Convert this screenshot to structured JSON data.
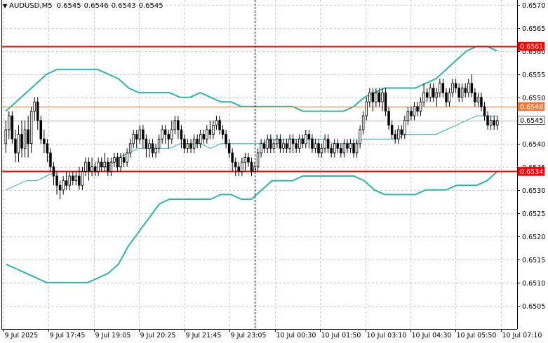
{
  "header": {
    "symbol": "AUDUSD,M5",
    "open": "0.6545",
    "high": "0.6546",
    "low": "0.6543",
    "close": "0.6545"
  },
  "chart_data": {
    "type": "candlestick",
    "symbol": "AUDUSD",
    "timeframe": "M5",
    "ylim": [
      0.65,
      0.6571
    ],
    "y_ticks": [
      "0.6570",
      "0.6565",
      "0.6560",
      "0.6555",
      "0.6550",
      "0.6545",
      "0.6540",
      "0.6535",
      "0.6530",
      "0.6525",
      "0.6520",
      "0.6515",
      "0.6510",
      "0.6505"
    ],
    "x_ticks": [
      "9 Jul 2025",
      "9 Jul 17:45",
      "9 Jul 19:05",
      "9 Jul 20:25",
      "9 Jul 21:45",
      "9 Jul 23:05",
      "10 Jul 00:30",
      "10 Jul 01:50",
      "10 Jul 03:10",
      "10 Jul 04:30",
      "10 Jul 05:50",
      "10 Jul 07:10"
    ],
    "grid": true,
    "crosshair_label": "9 Jul 23:05",
    "horizontal_levels": [
      {
        "label": "0.6561",
        "value": 0.6561,
        "color": "#ff0000"
      },
      {
        "label": "0.6548",
        "value": 0.6548,
        "color": "#f07a3a"
      },
      {
        "label": "0.6534",
        "value": 0.6534,
        "color": "#ff0000"
      }
    ],
    "current_price": {
      "label": "0.6545",
      "value": 0.6545
    },
    "bollinger": {
      "color": "#2bb5a8",
      "upper": [
        0.6547,
        0.6549,
        0.6551,
        0.6553,
        0.6555,
        0.6556,
        0.6556,
        0.6556,
        0.6556,
        0.6556,
        0.6555,
        0.6554,
        0.6552,
        0.6551,
        0.6551,
        0.6551,
        0.6551,
        0.655,
        0.655,
        0.6551,
        0.655,
        0.6549,
        0.6549,
        0.6548,
        0.6548,
        0.6548,
        0.6548,
        0.6548,
        0.6548,
        0.6547,
        0.6547,
        0.6547,
        0.6547,
        0.6547,
        0.6548,
        0.655,
        0.6551,
        0.6552,
        0.6552,
        0.6552,
        0.6552,
        0.6553,
        0.6554,
        0.6556,
        0.6558,
        0.656,
        0.6561,
        0.6561,
        0.656
      ],
      "middle": [
        0.653,
        0.6531,
        0.6532,
        0.6532,
        0.6533,
        0.6534,
        0.6534,
        0.6534,
        0.6534,
        0.6535,
        0.6535,
        0.6537,
        0.6538,
        0.6539,
        0.6539,
        0.6539,
        0.6539,
        0.654,
        0.654,
        0.654,
        0.6539,
        0.654,
        0.654,
        0.654,
        0.654,
        0.654,
        0.6541,
        0.6541,
        0.6541,
        0.6541,
        0.6541,
        0.6541,
        0.654,
        0.654,
        0.654,
        0.6541,
        0.6541,
        0.6541,
        0.6541,
        0.6542,
        0.6542,
        0.6542,
        0.6542,
        0.6543,
        0.6544,
        0.6545,
        0.6546,
        0.6546,
        0.6546
      ],
      "lower": [
        0.6514,
        0.6513,
        0.6512,
        0.6511,
        0.651,
        0.651,
        0.651,
        0.651,
        0.651,
        0.6511,
        0.6512,
        0.6514,
        0.6518,
        0.6521,
        0.6524,
        0.6527,
        0.6528,
        0.6528,
        0.6528,
        0.6528,
        0.6528,
        0.6529,
        0.6529,
        0.6528,
        0.6528,
        0.653,
        0.6532,
        0.6532,
        0.6532,
        0.6533,
        0.6533,
        0.6533,
        0.6533,
        0.6533,
        0.6533,
        0.6532,
        0.653,
        0.6529,
        0.6529,
        0.6529,
        0.6529,
        0.653,
        0.653,
        0.653,
        0.6531,
        0.6531,
        0.6531,
        0.6532,
        0.6534
      ]
    },
    "candles": [
      [
        0.654,
        0.6543,
        0.6545,
        0.6538
      ],
      [
        0.6543,
        0.6546,
        0.6547,
        0.6541
      ],
      [
        0.6546,
        0.6541,
        0.6547,
        0.654
      ],
      [
        0.6541,
        0.6538,
        0.6543,
        0.6536
      ],
      [
        0.6538,
        0.6542,
        0.6544,
        0.6536
      ],
      [
        0.6542,
        0.6539,
        0.6545,
        0.6537
      ],
      [
        0.6539,
        0.6543,
        0.6545,
        0.6537
      ],
      [
        0.6543,
        0.654,
        0.6546,
        0.6537
      ],
      [
        0.654,
        0.6547,
        0.6548,
        0.6538
      ],
      [
        0.6547,
        0.6549,
        0.655,
        0.6545
      ],
      [
        0.6549,
        0.6545,
        0.655,
        0.6543
      ],
      [
        0.6545,
        0.6541,
        0.6546,
        0.654
      ],
      [
        0.6541,
        0.654,
        0.6543,
        0.6538
      ],
      [
        0.654,
        0.6538,
        0.6541,
        0.6536
      ],
      [
        0.6538,
        0.6535,
        0.6539,
        0.6534
      ],
      [
        0.6535,
        0.6533,
        0.6536,
        0.6531
      ],
      [
        0.6533,
        0.6531,
        0.6534,
        0.6529
      ],
      [
        0.6531,
        0.653,
        0.6532,
        0.6528
      ],
      [
        0.653,
        0.6532,
        0.6533,
        0.6529
      ],
      [
        0.6532,
        0.6531,
        0.6534,
        0.653
      ],
      [
        0.6531,
        0.6533,
        0.6534,
        0.653
      ],
      [
        0.6533,
        0.6532,
        0.6534,
        0.6531
      ],
      [
        0.6532,
        0.6533,
        0.6534,
        0.6531
      ],
      [
        0.6533,
        0.6531,
        0.6535,
        0.653
      ],
      [
        0.6531,
        0.6534,
        0.6535,
        0.653
      ],
      [
        0.6534,
        0.6536,
        0.6537,
        0.6533
      ],
      [
        0.6536,
        0.6534,
        0.6537,
        0.6532
      ],
      [
        0.6534,
        0.6535,
        0.6537,
        0.6533
      ],
      [
        0.6535,
        0.6534,
        0.6536,
        0.6533
      ],
      [
        0.6534,
        0.6536,
        0.6537,
        0.6533
      ],
      [
        0.6536,
        0.6535,
        0.6537,
        0.6534
      ],
      [
        0.6535,
        0.6536,
        0.6538,
        0.6534
      ],
      [
        0.6536,
        0.6534,
        0.6537,
        0.6533
      ],
      [
        0.6534,
        0.6536,
        0.6537,
        0.6533
      ],
      [
        0.6536,
        0.6537,
        0.6538,
        0.6535
      ],
      [
        0.6537,
        0.6535,
        0.6538,
        0.6534
      ],
      [
        0.6535,
        0.6537,
        0.6538,
        0.6534
      ],
      [
        0.6537,
        0.6536,
        0.6538,
        0.6535
      ],
      [
        0.6536,
        0.6538,
        0.6539,
        0.6535
      ],
      [
        0.6538,
        0.654,
        0.6541,
        0.6537
      ],
      [
        0.654,
        0.6542,
        0.6543,
        0.6539
      ],
      [
        0.6542,
        0.6541,
        0.6543,
        0.6539
      ],
      [
        0.6541,
        0.6543,
        0.6544,
        0.654
      ],
      [
        0.6543,
        0.6541,
        0.6544,
        0.6539
      ],
      [
        0.6541,
        0.6539,
        0.6542,
        0.6537
      ],
      [
        0.6539,
        0.654,
        0.6541,
        0.6537
      ],
      [
        0.654,
        0.6538,
        0.6541,
        0.6537
      ],
      [
        0.6538,
        0.6539,
        0.654,
        0.6537
      ],
      [
        0.6539,
        0.6541,
        0.6542,
        0.6538
      ],
      [
        0.6541,
        0.6543,
        0.6544,
        0.654
      ],
      [
        0.6543,
        0.6542,
        0.6544,
        0.654
      ],
      [
        0.6542,
        0.6541,
        0.6543,
        0.6539
      ],
      [
        0.6541,
        0.6543,
        0.6545,
        0.654
      ],
      [
        0.6543,
        0.6545,
        0.6546,
        0.6542
      ],
      [
        0.6545,
        0.6543,
        0.6546,
        0.6541
      ],
      [
        0.6543,
        0.6541,
        0.6544,
        0.6539
      ],
      [
        0.6541,
        0.6539,
        0.6542,
        0.6538
      ],
      [
        0.6539,
        0.654,
        0.6541,
        0.6538
      ],
      [
        0.654,
        0.6539,
        0.6541,
        0.6538
      ],
      [
        0.6539,
        0.6541,
        0.6542,
        0.6538
      ],
      [
        0.6541,
        0.654,
        0.6542,
        0.6539
      ],
      [
        0.654,
        0.6542,
        0.6543,
        0.6539
      ],
      [
        0.6542,
        0.6541,
        0.6543,
        0.654
      ],
      [
        0.6541,
        0.6543,
        0.6544,
        0.654
      ],
      [
        0.6543,
        0.6542,
        0.6545,
        0.6541
      ],
      [
        0.6542,
        0.6544,
        0.6545,
        0.6541
      ],
      [
        0.6544,
        0.6545,
        0.6546,
        0.6543
      ],
      [
        0.6545,
        0.6543,
        0.6546,
        0.6542
      ],
      [
        0.6543,
        0.6542,
        0.6544,
        0.6541
      ],
      [
        0.6542,
        0.654,
        0.6543,
        0.6539
      ],
      [
        0.654,
        0.6538,
        0.6541,
        0.6537
      ],
      [
        0.6538,
        0.6536,
        0.6539,
        0.6534
      ],
      [
        0.6536,
        0.6535,
        0.6537,
        0.6533
      ],
      [
        0.6535,
        0.6534,
        0.6536,
        0.6533
      ],
      [
        0.6534,
        0.6536,
        0.6537,
        0.6533
      ],
      [
        0.6536,
        0.6537,
        0.6538,
        0.6534
      ],
      [
        0.6537,
        0.6536,
        0.6538,
        0.6535
      ],
      [
        0.6536,
        0.6534,
        0.6537,
        0.6533
      ],
      [
        0.6534,
        0.6535,
        0.6536,
        0.6534
      ],
      [
        0.6535,
        0.6538,
        0.6539,
        0.6534
      ],
      [
        0.6538,
        0.654,
        0.6541,
        0.6537
      ],
      [
        0.654,
        0.6539,
        0.6541,
        0.6538
      ],
      [
        0.6539,
        0.6541,
        0.6542,
        0.6538
      ],
      [
        0.6541,
        0.6539,
        0.6542,
        0.6538
      ],
      [
        0.6539,
        0.654,
        0.6541,
        0.6538
      ],
      [
        0.654,
        0.6541,
        0.6542,
        0.6539
      ],
      [
        0.6541,
        0.6539,
        0.6542,
        0.6538
      ],
      [
        0.6539,
        0.654,
        0.6541,
        0.6538
      ],
      [
        0.654,
        0.6539,
        0.6541,
        0.6538
      ],
      [
        0.6539,
        0.6541,
        0.6542,
        0.6538
      ],
      [
        0.6541,
        0.654,
        0.6542,
        0.6538
      ],
      [
        0.654,
        0.6539,
        0.6541,
        0.6538
      ],
      [
        0.6539,
        0.6541,
        0.6542,
        0.6538
      ],
      [
        0.6541,
        0.654,
        0.6542,
        0.6539
      ],
      [
        0.654,
        0.6542,
        0.6543,
        0.6539
      ],
      [
        0.6542,
        0.6541,
        0.6543,
        0.6539
      ],
      [
        0.6541,
        0.6539,
        0.6542,
        0.6538
      ],
      [
        0.6539,
        0.654,
        0.6541,
        0.6538
      ],
      [
        0.654,
        0.6538,
        0.6541,
        0.6537
      ],
      [
        0.6538,
        0.6539,
        0.654,
        0.6537
      ],
      [
        0.6539,
        0.6541,
        0.6542,
        0.6538
      ],
      [
        0.6541,
        0.6539,
        0.6542,
        0.6538
      ],
      [
        0.6539,
        0.6538,
        0.654,
        0.6537
      ],
      [
        0.6538,
        0.654,
        0.6541,
        0.6537
      ],
      [
        0.654,
        0.6539,
        0.6541,
        0.6538
      ],
      [
        0.6539,
        0.6538,
        0.654,
        0.6537
      ],
      [
        0.6538,
        0.654,
        0.6541,
        0.6537
      ],
      [
        0.654,
        0.6539,
        0.6541,
        0.6538
      ],
      [
        0.6539,
        0.654,
        0.6541,
        0.6538
      ],
      [
        0.654,
        0.6538,
        0.6541,
        0.6537
      ],
      [
        0.6538,
        0.654,
        0.6541,
        0.6537
      ],
      [
        0.654,
        0.6543,
        0.6544,
        0.6539
      ],
      [
        0.6543,
        0.6546,
        0.6547,
        0.6542
      ],
      [
        0.6546,
        0.6549,
        0.655,
        0.6545
      ],
      [
        0.6549,
        0.6551,
        0.6552,
        0.6548
      ],
      [
        0.6551,
        0.6549,
        0.6552,
        0.6547
      ],
      [
        0.6549,
        0.6551,
        0.6552,
        0.6548
      ],
      [
        0.6551,
        0.6549,
        0.6552,
        0.6548
      ],
      [
        0.6549,
        0.6551,
        0.6552,
        0.6547
      ],
      [
        0.6551,
        0.6547,
        0.6552,
        0.6546
      ],
      [
        0.6547,
        0.6544,
        0.6548,
        0.6543
      ],
      [
        0.6544,
        0.6542,
        0.6545,
        0.6541
      ],
      [
        0.6542,
        0.6541,
        0.6543,
        0.654
      ],
      [
        0.6541,
        0.6543,
        0.6544,
        0.654
      ],
      [
        0.6543,
        0.6542,
        0.6544,
        0.6541
      ],
      [
        0.6542,
        0.6545,
        0.6546,
        0.6541
      ],
      [
        0.6545,
        0.6547,
        0.6548,
        0.6544
      ],
      [
        0.6547,
        0.6546,
        0.6548,
        0.6545
      ],
      [
        0.6546,
        0.6548,
        0.6549,
        0.6545
      ],
      [
        0.6548,
        0.6547,
        0.6549,
        0.6546
      ],
      [
        0.6547,
        0.6549,
        0.655,
        0.6546
      ],
      [
        0.6549,
        0.6551,
        0.6553,
        0.6548
      ],
      [
        0.6551,
        0.655,
        0.6552,
        0.6549
      ],
      [
        0.655,
        0.6552,
        0.6553,
        0.6549
      ],
      [
        0.6552,
        0.655,
        0.6553,
        0.6549
      ],
      [
        0.655,
        0.6551,
        0.6552,
        0.6548
      ],
      [
        0.6551,
        0.6553,
        0.6554,
        0.655
      ],
      [
        0.6553,
        0.6551,
        0.6554,
        0.655
      ],
      [
        0.6551,
        0.6549,
        0.6552,
        0.6548
      ],
      [
        0.6549,
        0.6551,
        0.6552,
        0.6548
      ],
      [
        0.6551,
        0.6553,
        0.6554,
        0.655
      ],
      [
        0.6553,
        0.6552,
        0.6554,
        0.6551
      ],
      [
        0.6552,
        0.655,
        0.6553,
        0.6549
      ],
      [
        0.655,
        0.6552,
        0.6553,
        0.6549
      ],
      [
        0.6552,
        0.6551,
        0.6553,
        0.655
      ],
      [
        0.6551,
        0.6553,
        0.6554,
        0.655
      ],
      [
        0.6553,
        0.6551,
        0.6555,
        0.655
      ],
      [
        0.6551,
        0.6549,
        0.6552,
        0.6548
      ],
      [
        0.6549,
        0.655,
        0.6551,
        0.6548
      ],
      [
        0.655,
        0.6548,
        0.6551,
        0.6547
      ],
      [
        0.6548,
        0.6546,
        0.6549,
        0.6545
      ],
      [
        0.6546,
        0.6544,
        0.6547,
        0.6543
      ],
      [
        0.6544,
        0.6545,
        0.6546,
        0.6543
      ],
      [
        0.6545,
        0.6544,
        0.6546,
        0.6543
      ],
      [
        0.6544,
        0.6545,
        0.6546,
        0.6543
      ]
    ]
  },
  "price_tags": [
    {
      "label": "0.6561",
      "value": 0.6561,
      "bg": "#ff0000",
      "fg": "#ffffff"
    },
    {
      "label": "0.6548",
      "value": 0.6548,
      "bg": "#f07a3a",
      "fg": "#ffffff"
    },
    {
      "label": "0.6545",
      "value": 0.6545,
      "bg": "#ffffff",
      "fg": "#000000"
    },
    {
      "label": "0.6534",
      "value": 0.6534,
      "bg": "#ff0000",
      "fg": "#ffffff"
    }
  ]
}
